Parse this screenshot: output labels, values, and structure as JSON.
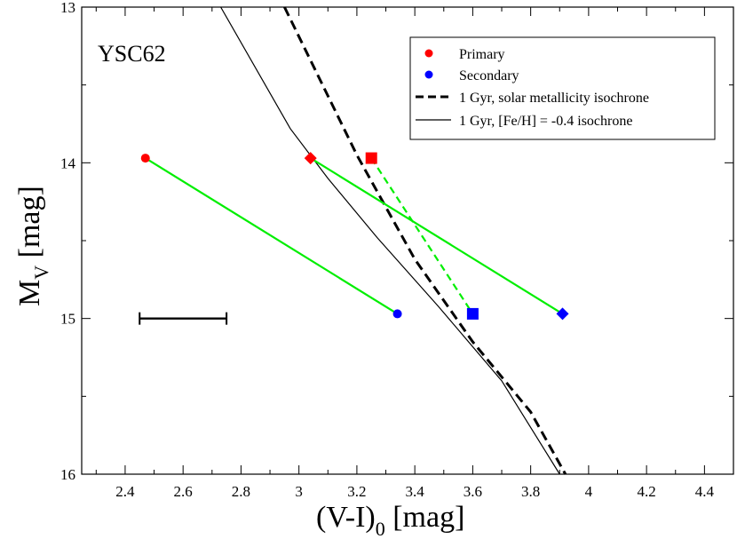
{
  "chart_data": {
    "type": "scatter",
    "annotation": "YSC62",
    "xlabel": {
      "main": "(V-I)",
      "sub": "0",
      "unit": " [mag]"
    },
    "ylabel": {
      "main": "M",
      "sub": "V",
      "unit": " [mag]"
    },
    "xlim": [
      2.25,
      4.5
    ],
    "ylim": [
      16,
      13
    ],
    "y_inverted": true,
    "x_ticks": [
      2.4,
      2.6,
      2.8,
      3,
      3.2,
      3.4,
      3.6,
      3.8,
      4,
      4.2,
      4.4
    ],
    "x_tick_labels": [
      "2.4",
      "2.6",
      "2.8",
      "3",
      "3.2",
      "3.4",
      "3.6",
      "3.8",
      "4",
      "4.2",
      "4.4"
    ],
    "y_ticks": [
      13,
      14,
      15,
      16
    ],
    "y_tick_labels": [
      "13",
      "14",
      "15",
      "16"
    ],
    "grid": false,
    "legend_position": "top-right",
    "legend": [
      {
        "label": "Primary",
        "kind": "marker",
        "color": "#ff0000"
      },
      {
        "label": "Secondary",
        "kind": "marker",
        "color": "#0000ff"
      },
      {
        "label": "1 Gyr, solar metallicity isochrone",
        "kind": "dashed"
      },
      {
        "label": "1 Gyr, [Fe/H] = -0.4 isochrone",
        "kind": "solid"
      }
    ],
    "isochrones": [
      {
        "style": "dashed",
        "points": [
          [
            2.95,
            13.0
          ],
          [
            3.2,
            13.95
          ],
          [
            3.4,
            14.62
          ],
          [
            3.6,
            15.15
          ],
          [
            3.8,
            15.6
          ],
          [
            3.92,
            16.0
          ]
        ]
      },
      {
        "style": "solid",
        "points": [
          [
            2.73,
            13.0
          ],
          [
            2.97,
            13.78
          ],
          [
            3.1,
            14.1
          ],
          [
            3.27,
            14.48
          ],
          [
            3.48,
            14.92
          ],
          [
            3.7,
            15.4
          ],
          [
            3.9,
            16.0
          ]
        ]
      }
    ],
    "pairs": [
      {
        "marker": "circle",
        "primary": [
          2.47,
          13.97
        ],
        "secondary": [
          3.34,
          14.97
        ],
        "connector": "solid"
      },
      {
        "marker": "diamond",
        "primary": [
          3.04,
          13.97
        ],
        "secondary": [
          3.91,
          14.97
        ],
        "connector": "solid"
      },
      {
        "marker": "square",
        "primary": [
          3.25,
          13.97
        ],
        "secondary": [
          3.6,
          14.97
        ],
        "connector": "dashed"
      }
    ],
    "error_bar": {
      "x_from": 2.45,
      "x_to": 2.75,
      "y": 15.0
    },
    "colors": {
      "primary": "#ff0000",
      "secondary": "#0000ff",
      "connector": "#00ee00",
      "axis": "#000000"
    }
  }
}
